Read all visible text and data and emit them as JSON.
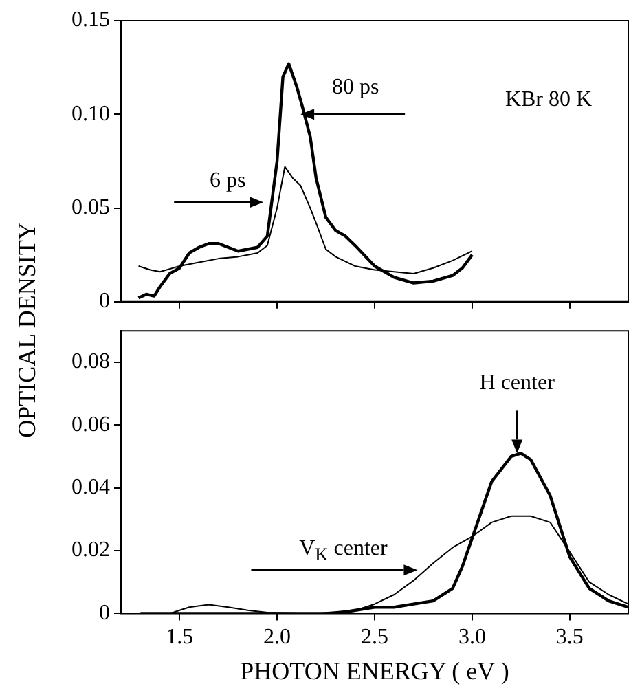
{
  "chart_data": [
    {
      "type": "line",
      "ylabel": "OPTICAL DENSITY",
      "xlim": [
        1.2,
        3.8
      ],
      "xticks": [
        1.5,
        2,
        2.5,
        3,
        3.5
      ],
      "ylim": [
        0,
        0.15
      ],
      "yticks": [
        0,
        0.05,
        {
          "value": 0.1,
          "label": "0.10"
        },
        0.15
      ],
      "tick_labels": "y",
      "grid": false,
      "legend": false,
      "marker": "none",
      "series": [
        {
          "color": "#000000",
          "x": [
            1.29,
            1.33,
            1.37,
            1.4,
            1.45,
            1.5,
            1.55,
            1.6,
            1.65,
            1.7,
            1.75,
            1.8,
            1.85,
            1.9,
            1.95,
            2.0,
            2.03,
            2.06,
            2.1,
            2.13,
            2.17,
            2.2,
            2.25,
            2.3,
            2.35,
            2.4,
            2.5,
            2.6,
            2.7,
            2.8,
            2.9,
            2.95,
            3.0
          ],
          "values": [
            0.002,
            0.004,
            0.003,
            0.008,
            0.015,
            0.018,
            0.026,
            0.029,
            0.031,
            0.031,
            0.029,
            0.027,
            0.028,
            0.029,
            0.035,
            0.075,
            0.12,
            0.127,
            0.115,
            0.104,
            0.088,
            0.066,
            0.045,
            0.038,
            0.035,
            0.03,
            0.019,
            0.013,
            0.01,
            0.011,
            0.014,
            0.018,
            0.025
          ]
        },
        {
          "color": "#000000",
          "x": [
            1.29,
            1.35,
            1.4,
            1.5,
            1.6,
            1.7,
            1.8,
            1.9,
            1.95,
            2.0,
            2.04,
            2.08,
            2.12,
            2.17,
            2.2,
            2.25,
            2.3,
            2.4,
            2.5,
            2.6,
            2.7,
            2.8,
            2.9,
            3.0
          ],
          "values": [
            0.019,
            0.017,
            0.016,
            0.019,
            0.021,
            0.023,
            0.024,
            0.026,
            0.03,
            0.05,
            0.072,
            0.066,
            0.062,
            0.05,
            0.042,
            0.028,
            0.024,
            0.019,
            0.017,
            0.016,
            0.015,
            0.018,
            0.022,
            0.027
          ]
        }
      ],
      "annotations": [
        {
          "text": "80 ps",
          "x": 2.12,
          "y": 0.1
        },
        {
          "text": "6 ps",
          "x": 1.93,
          "y": 0.053
        },
        "KBr  80 K"
      ]
    },
    {
      "type": "line",
      "xlabel": "PHOTON ENERGY ( eV )",
      "xlim": [
        1.2,
        3.8
      ],
      "xticks": [
        1.5,
        {
          "value": 2,
          "label": "2.0"
        },
        2.5,
        {
          "value": 3,
          "label": "3.0"
        },
        3.5
      ],
      "ylim": [
        0,
        0.09
      ],
      "yticks": [
        0,
        0.02,
        0.04,
        0.06,
        0.08
      ],
      "grid": false,
      "legend": false,
      "marker": "none",
      "series": [
        {
          "color": "#000000",
          "x": [
            1.3,
            2.3,
            2.5,
            2.6,
            2.7,
            2.8,
            2.9,
            2.95,
            3.0,
            3.1,
            3.2,
            3.25,
            3.3,
            3.4,
            3.5,
            3.6,
            3.7,
            3.8
          ],
          "values": [
            0,
            0,
            0.002,
            0.002,
            0.003,
            0.004,
            0.008,
            0.015,
            0.024,
            0.042,
            0.05,
            0.051,
            0.049,
            0.0375,
            0.018,
            0.008,
            0.004,
            0.002
          ]
        },
        {
          "color": "#000000",
          "x": [
            1.45,
            1.55,
            1.65,
            1.75,
            1.85,
            1.95,
            2.2,
            2.4,
            2.5,
            2.6,
            2.7,
            2.8,
            2.9,
            3.0,
            3.1,
            3.2,
            3.3,
            3.4,
            3.5,
            3.6,
            3.7,
            3.8
          ],
          "values": [
            0,
            0.002,
            0.0028,
            0.002,
            0.001,
            0.0003,
            0,
            0.001,
            0.003,
            0.006,
            0.0105,
            0.016,
            0.021,
            0.0245,
            0.029,
            0.031,
            0.031,
            0.029,
            0.0196,
            0.01,
            0.006,
            0.003
          ]
        }
      ],
      "annotations": [
        {
          "text": "H center",
          "x": 3.23,
          "y": 0.051
        },
        {
          "text": "V$_{K}$ center",
          "x": 2.72,
          "y": 0.0138
        }
      ]
    }
  ]
}
